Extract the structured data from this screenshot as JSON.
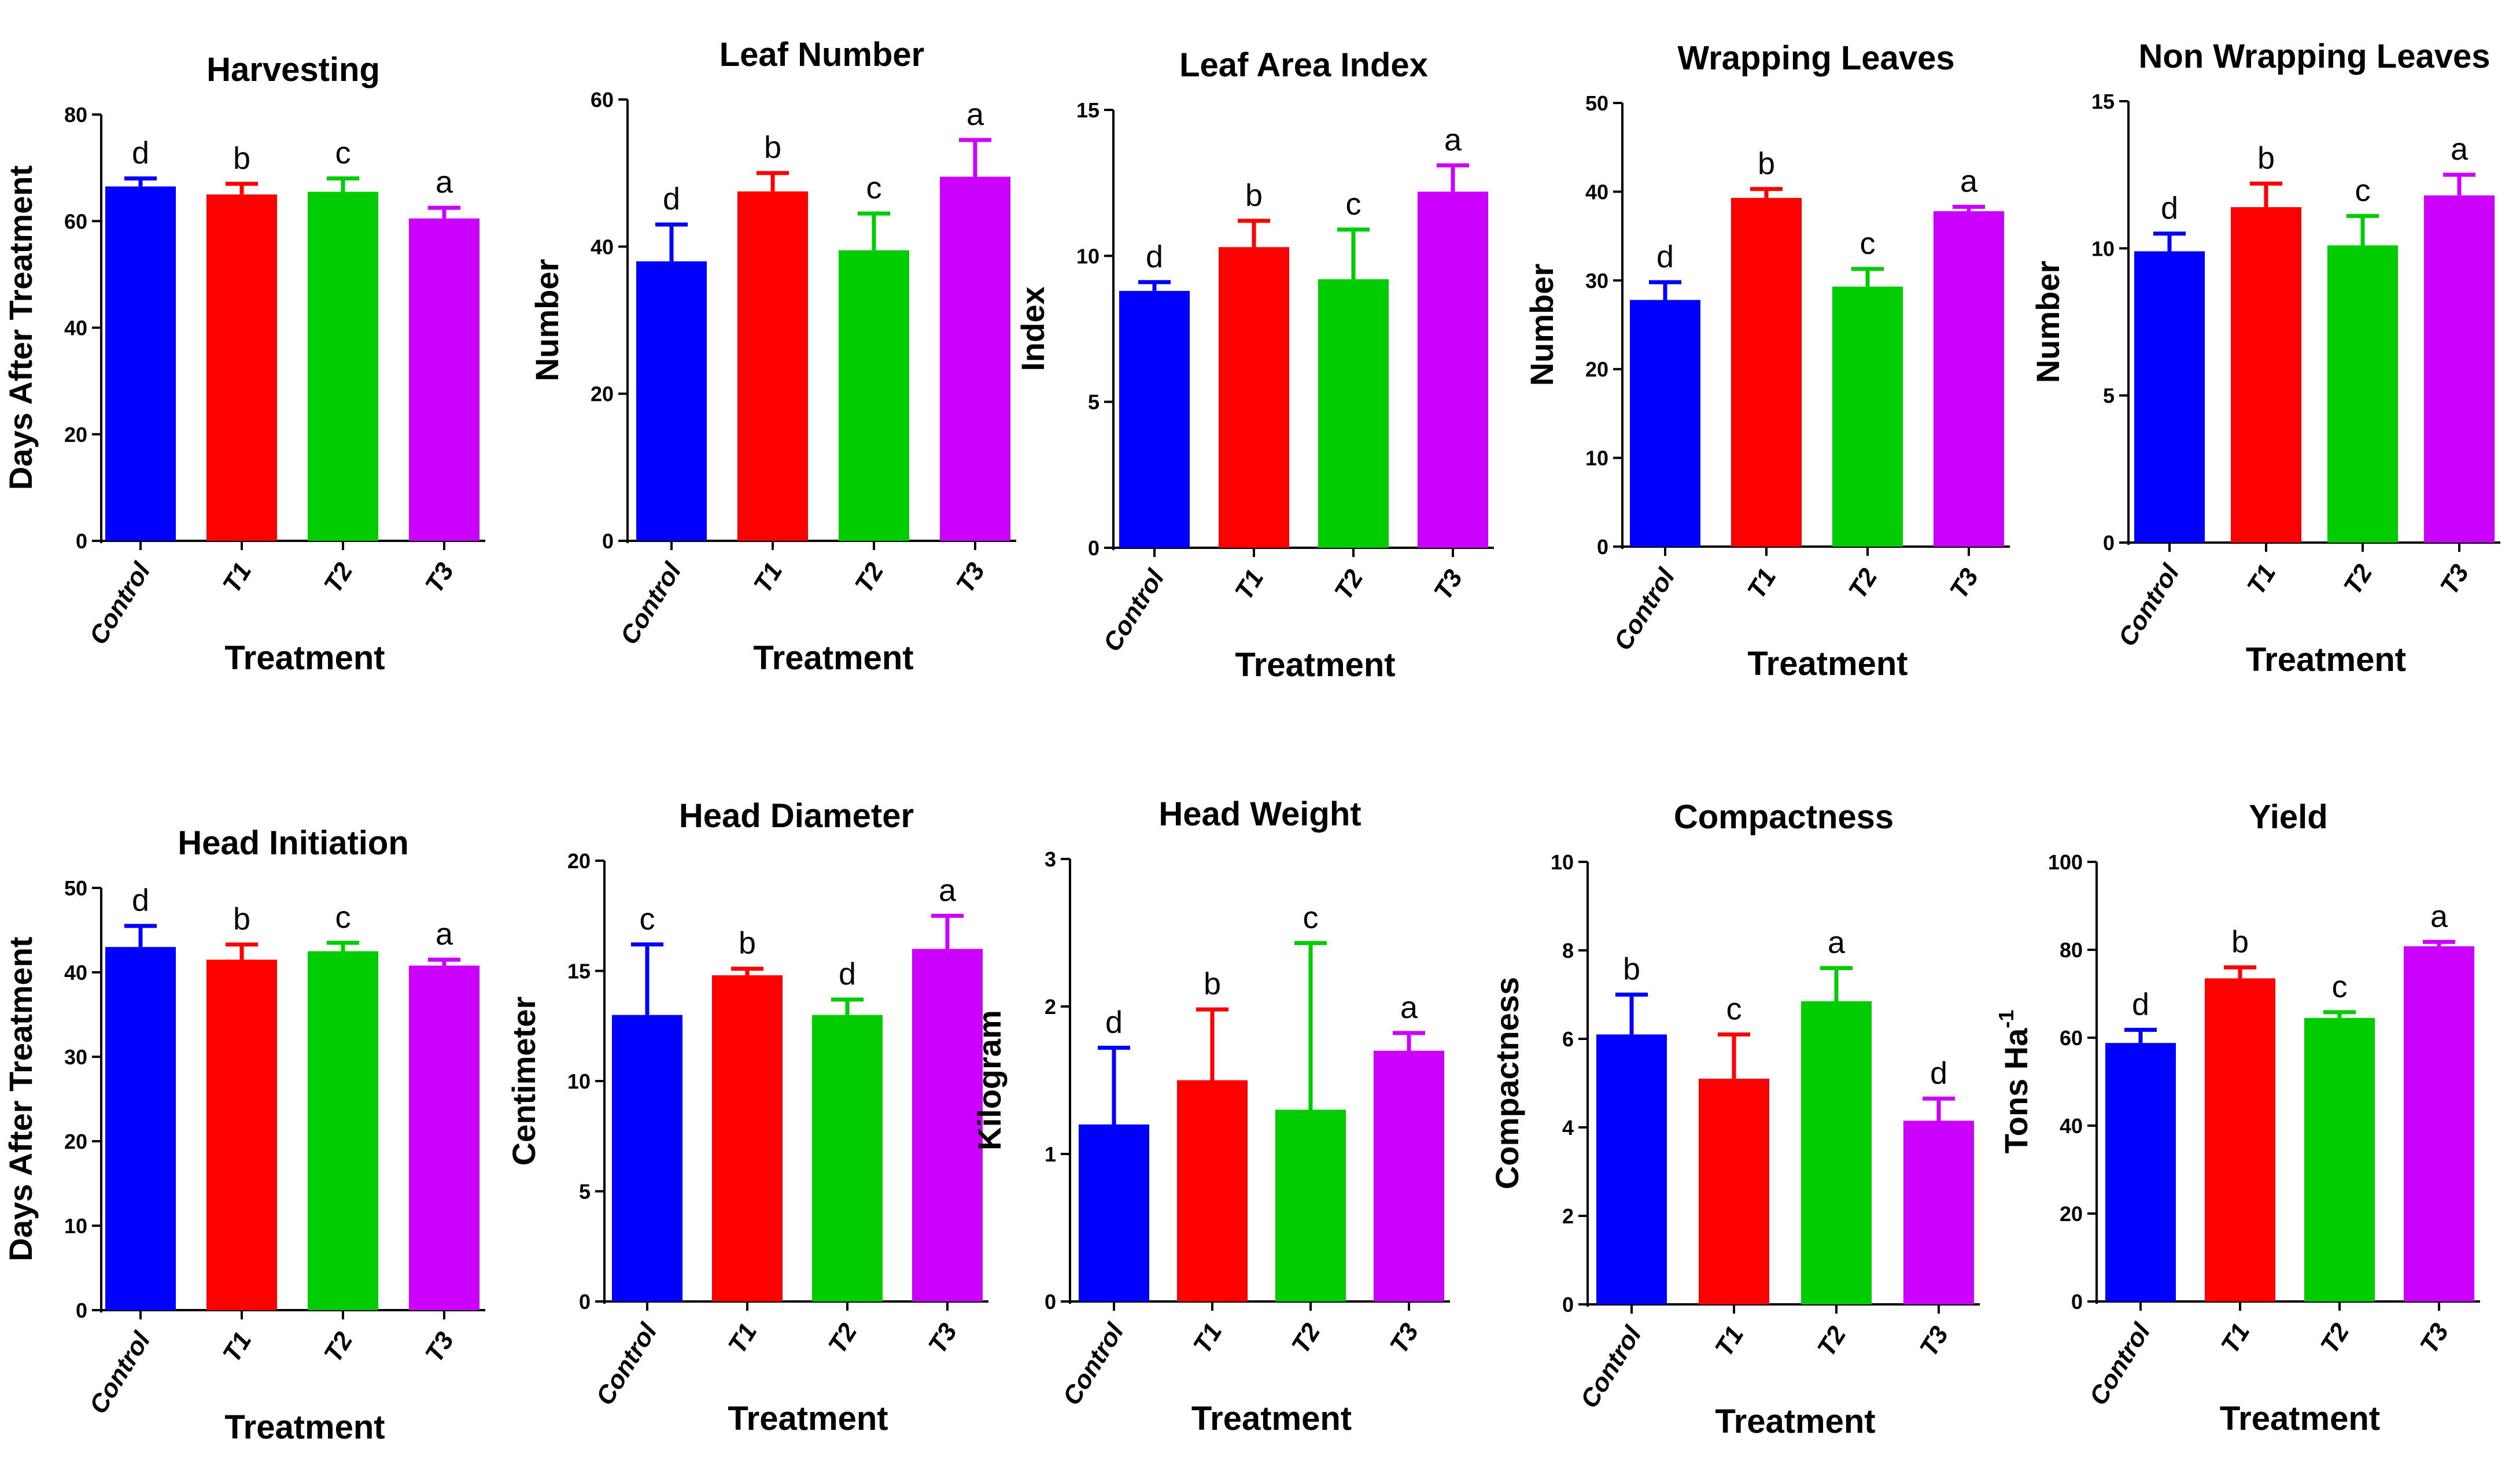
{
  "colors": [
    "#0000ff",
    "#ff0000",
    "#00cc00",
    "#cc00ff"
  ],
  "chart_data": [
    {
      "type": "bar",
      "title": "Harvesting",
      "xlabel": "Treatment",
      "ylabel": "Days  After Treatment",
      "categories": [
        "Control",
        "T1",
        "T2",
        "T3"
      ],
      "values": [
        66.5,
        65,
        65.5,
        60.5
      ],
      "errors": [
        1.5,
        2,
        2.5,
        2
      ],
      "letters": [
        "d",
        "b",
        "c",
        "a"
      ],
      "ylim": [
        0,
        80
      ],
      "yticks": [
        "0",
        "20",
        "40",
        "60",
        "80"
      ]
    },
    {
      "type": "bar",
      "title": "Leaf Number",
      "xlabel": "Treatment",
      "ylabel": "Number",
      "categories": [
        "Control",
        "T1",
        "T2",
        "T3"
      ],
      "values": [
        38,
        47.5,
        39.5,
        49.5
      ],
      "errors": [
        5,
        2.5,
        5,
        5
      ],
      "letters": [
        "d",
        "b",
        "c",
        "a"
      ],
      "ylim": [
        0,
        60
      ],
      "yticks": [
        "0",
        "20",
        "40",
        "60"
      ]
    },
    {
      "type": "bar",
      "title": "Leaf Area Index",
      "xlabel": "Treatment",
      "ylabel": "Index",
      "categories": [
        "Control",
        "T1",
        "T2",
        "T3"
      ],
      "values": [
        8.8,
        10.3,
        9.2,
        12.2
      ],
      "errors": [
        0.3,
        0.9,
        1.7,
        0.9
      ],
      "letters": [
        "d",
        "b",
        "c",
        "a"
      ],
      "ylim": [
        0,
        15
      ],
      "yticks": [
        "0",
        "5",
        "10",
        "15"
      ]
    },
    {
      "type": "bar",
      "title": "Wrapping Leaves",
      "xlabel": "Treatment",
      "ylabel": "Number",
      "categories": [
        "Control",
        "T1",
        "T2",
        "T3"
      ],
      "values": [
        27.8,
        39.3,
        29.3,
        37.8
      ],
      "errors": [
        2,
        1,
        2,
        0.5
      ],
      "letters": [
        "d",
        "b",
        "c",
        "a"
      ],
      "ylim": [
        0,
        50
      ],
      "yticks": [
        "0",
        "10",
        "20",
        "30",
        "40",
        "50"
      ]
    },
    {
      "type": "bar",
      "title": "Non Wrapping Leaves",
      "xlabel": "Treatment",
      "ylabel": "Number",
      "categories": [
        "Control",
        "T1",
        "T2",
        "T3"
      ],
      "values": [
        9.9,
        11.4,
        10.1,
        11.8
      ],
      "errors": [
        0.6,
        0.8,
        1,
        0.7
      ],
      "letters": [
        "d",
        "b",
        "c",
        "a"
      ],
      "ylim": [
        0,
        15
      ],
      "yticks": [
        "0",
        "5",
        "10",
        "15"
      ]
    },
    {
      "type": "bar",
      "title": "Head Initiation",
      "xlabel": "Treatment",
      "ylabel": "Days  After Treatment",
      "categories": [
        "Control",
        "T1",
        "T2",
        "T3"
      ],
      "values": [
        43,
        41.5,
        42.5,
        40.8
      ],
      "errors": [
        2.5,
        1.8,
        1,
        0.7
      ],
      "letters": [
        "d",
        "b",
        "c",
        "a"
      ],
      "ylim": [
        0,
        50
      ],
      "yticks": [
        "0",
        "10",
        "20",
        "30",
        "40",
        "50"
      ]
    },
    {
      "type": "bar",
      "title": "Head Diameter",
      "xlabel": "Treatment",
      "ylabel": "Centimeter",
      "categories": [
        "Control",
        "T1",
        "T2",
        "T3"
      ],
      "values": [
        13,
        14.8,
        13,
        16
      ],
      "errors": [
        3.2,
        0.3,
        0.7,
        1.5
      ],
      "letters": [
        "c",
        "b",
        "d",
        "a"
      ],
      "ylim": [
        0,
        20
      ],
      "yticks": [
        "0",
        "5",
        "10",
        "15",
        "20"
      ]
    },
    {
      "type": "bar",
      "title": "Head Weight",
      "xlabel": "Treatment",
      "ylabel": "Kilogram",
      "categories": [
        "Control",
        "T1",
        "T2",
        "T3"
      ],
      "values": [
        1.2,
        1.5,
        1.3,
        1.7
      ],
      "errors": [
        0.52,
        0.48,
        1.13,
        0.12
      ],
      "letters": [
        "d",
        "b",
        "c",
        "a"
      ],
      "ylim": [
        0,
        3
      ],
      "yticks": [
        "0",
        "1",
        "2",
        "3"
      ]
    },
    {
      "type": "bar",
      "title": "Compactness",
      "xlabel": "Treatment",
      "ylabel": "Compactness",
      "categories": [
        "Control",
        "T1",
        "T2",
        "T3"
      ],
      "values": [
        6.1,
        5.1,
        6.85,
        4.15
      ],
      "errors": [
        0.9,
        1,
        0.75,
        0.5
      ],
      "letters": [
        "b",
        "c",
        "a",
        "d"
      ],
      "ylim": [
        0,
        10
      ],
      "yticks": [
        "0",
        "2",
        "4",
        "6",
        "8",
        "10"
      ]
    },
    {
      "type": "bar",
      "title": "Yield",
      "xlabel": "Treatment",
      "ylabel": "Tons Ha-1",
      "ylabel_base": "Tons Ha",
      "ylabel_sup": "-1",
      "categories": [
        "Control",
        "T1",
        "T2",
        "T3"
      ],
      "values": [
        58.8,
        73.5,
        64.5,
        80.8
      ],
      "errors": [
        3,
        2.5,
        1.3,
        1
      ],
      "letters": [
        "d",
        "b",
        "c",
        "a"
      ],
      "ylim": [
        0,
        100
      ],
      "yticks": [
        "0",
        "20",
        "40",
        "60",
        "80",
        "100"
      ]
    }
  ]
}
